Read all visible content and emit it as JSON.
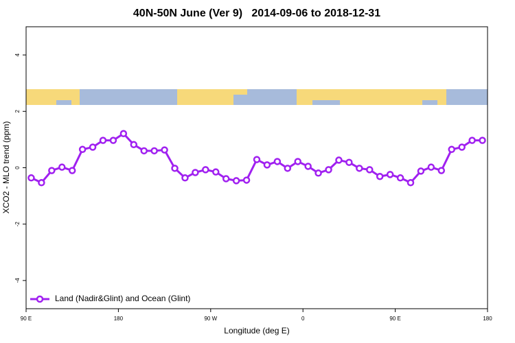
{
  "chart_data": {
    "type": "line",
    "title": "40N-50N June (Ver 9)   2014-09-06 to 2018-12-31",
    "x_label": "Longitude (deg E)",
    "y_label": "XCO2 - MLO trend (ppm)",
    "x": [
      95,
      105,
      115,
      125,
      135,
      145,
      155,
      165,
      175,
      185,
      195,
      205,
      215,
      225,
      235,
      245,
      255,
      265,
      275,
      285,
      295,
      305,
      315,
      325,
      335,
      345,
      355,
      365,
      375,
      385,
      395,
      405,
      415,
      425,
      435,
      445,
      455,
      465,
      475,
      485,
      495,
      505,
      515,
      525,
      535
    ],
    "series": [
      {
        "name": "Land (Nadir&Glint) and Ocean (Glint)",
        "color": "#a020f0",
        "values": [
          -0.36,
          -0.53,
          -0.1,
          0.02,
          -0.1,
          0.65,
          0.73,
          0.97,
          0.97,
          1.21,
          0.82,
          0.6,
          0.6,
          0.63,
          -0.02,
          -0.36,
          -0.17,
          -0.07,
          -0.15,
          -0.39,
          -0.46,
          -0.44,
          0.29,
          0.1,
          0.22,
          -0.02,
          0.22,
          0.05,
          -0.19,
          -0.07,
          0.27,
          0.19,
          -0.02,
          -0.07,
          -0.31,
          -0.24,
          -0.36,
          -0.53,
          -0.12,
          0.02,
          -0.1,
          0.65,
          0.73,
          0.97,
          0.97
        ]
      }
    ],
    "xlim": [
      90,
      540
    ],
    "xticks": [
      {
        "value": 90,
        "label": "90 E"
      },
      180,
      {
        "value": 270,
        "label": "90 W"
      },
      {
        "value": 360,
        "label": "0"
      },
      {
        "value": 450,
        "label": "90 E"
      },
      {
        "value": 540,
        "label": "180"
      }
    ],
    "ylim": [
      -5,
      5
    ],
    "yticks": [
      -4,
      -2,
      0,
      2,
      4
    ],
    "legend": "bottom-left"
  }
}
